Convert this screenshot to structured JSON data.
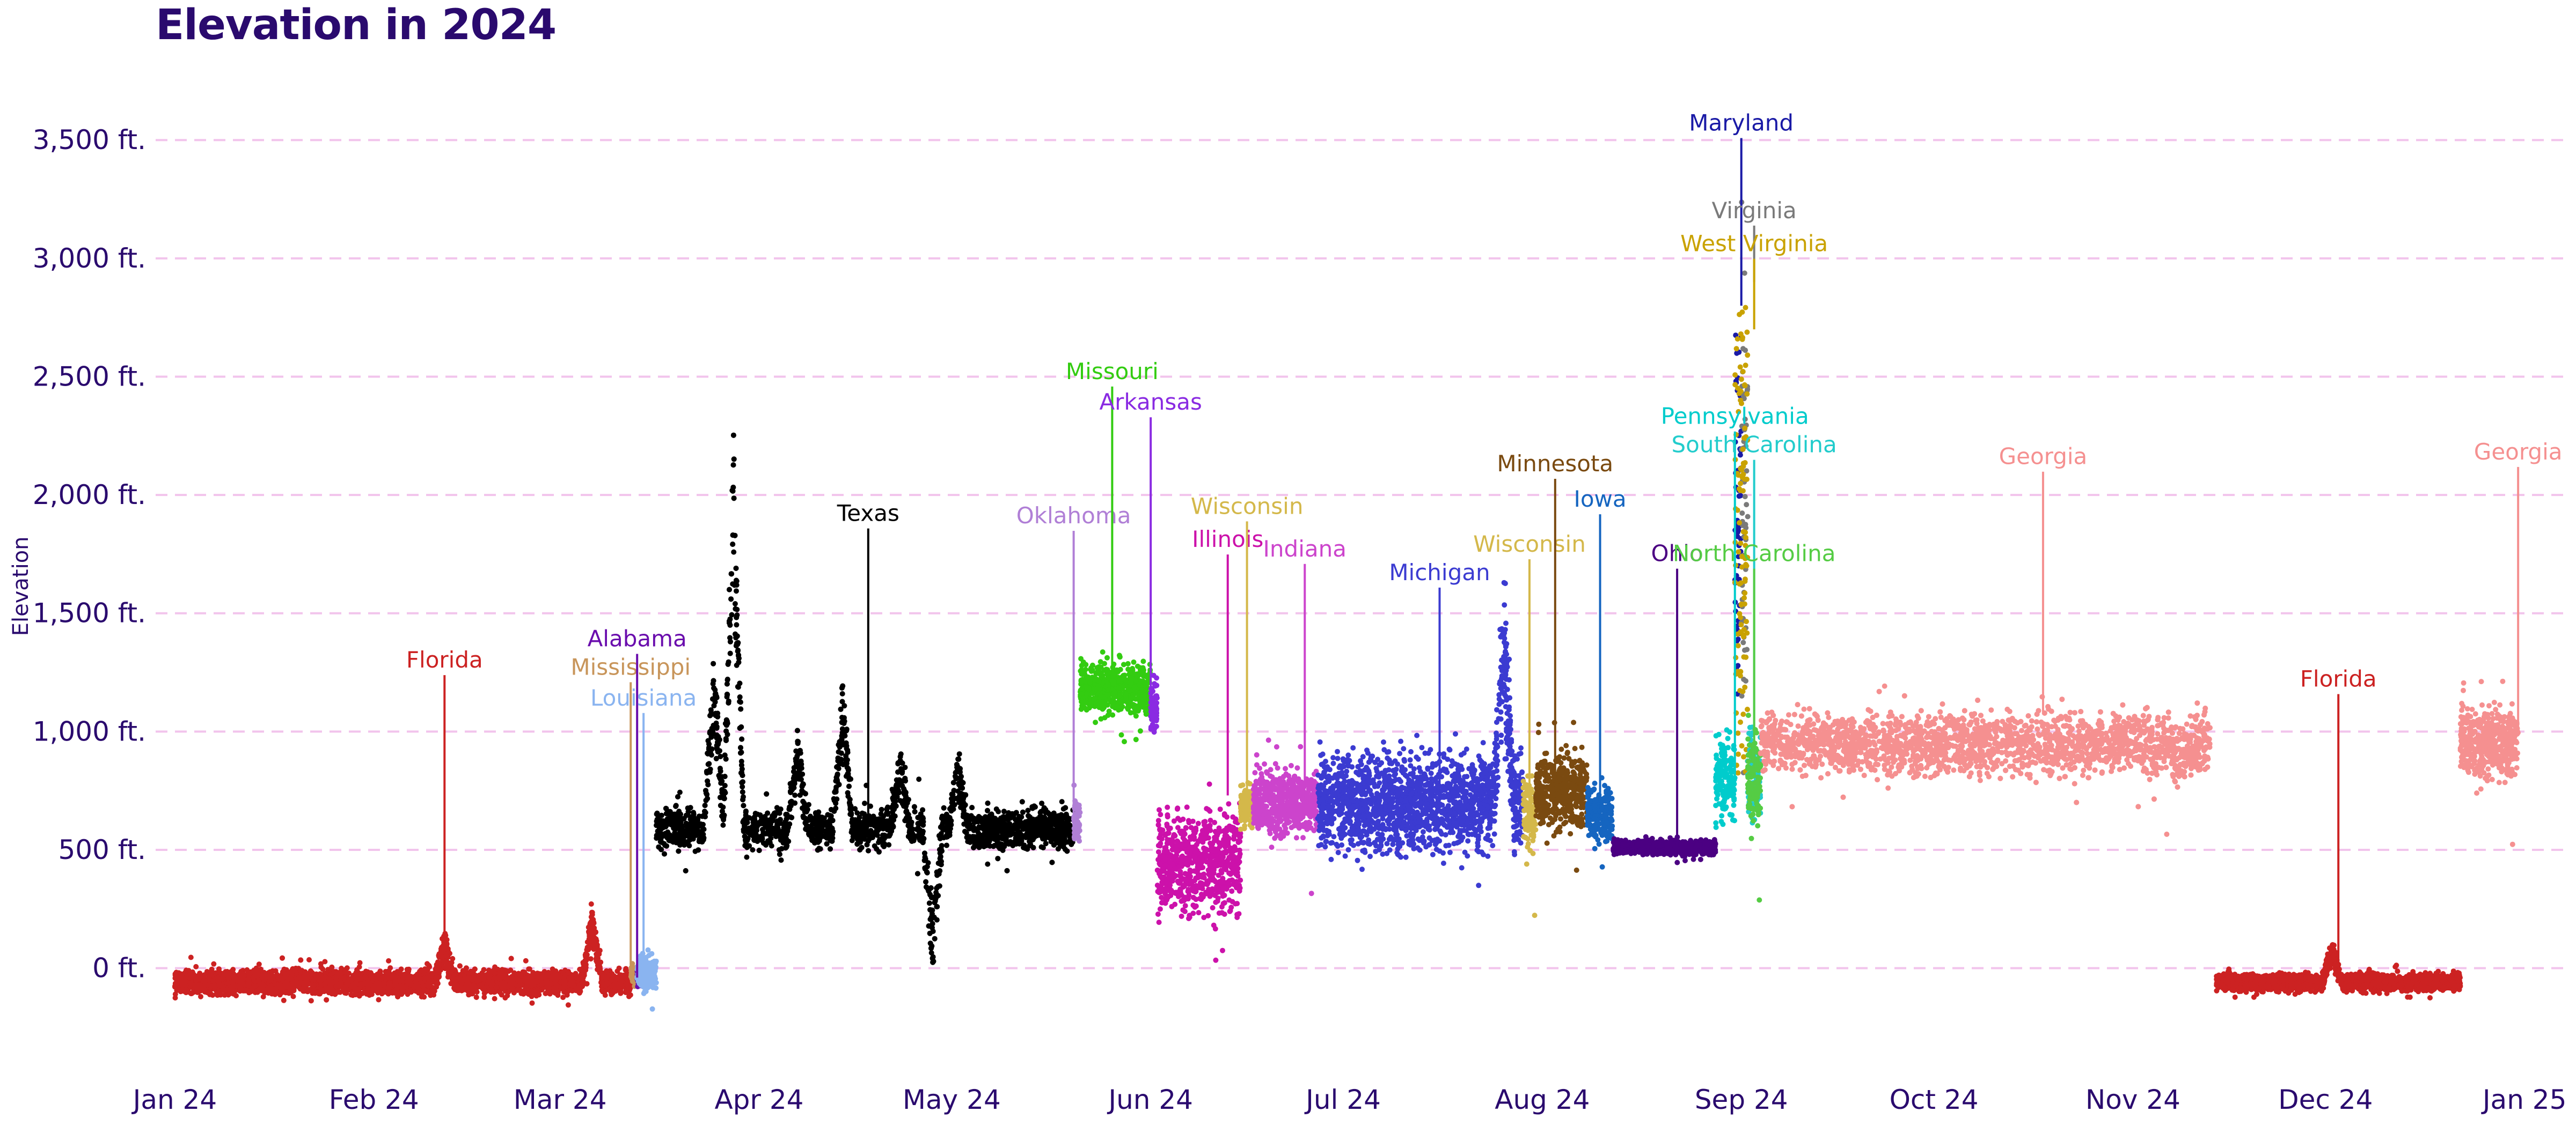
{
  "chart_data": {
    "type": "scatter",
    "title": "Elevation in 2024",
    "xlabel": "",
    "ylabel": "Elevation",
    "ylim": [
      -350,
      3650
    ],
    "xlim": [
      "2023-12-29",
      "2025-01-04"
    ],
    "grid": "horizontal dashed",
    "y_ticks": [
      {
        "value": 0,
        "label": "0 ft."
      },
      {
        "value": 500,
        "label": "500 ft."
      },
      {
        "value": 1000,
        "label": "1,000 ft."
      },
      {
        "value": 1500,
        "label": "1,500 ft."
      },
      {
        "value": 2000,
        "label": "2,000 ft."
      },
      {
        "value": 2500,
        "label": "2,500 ft."
      },
      {
        "value": 3000,
        "label": "3,000 ft."
      },
      {
        "value": 3500,
        "label": "3,500 ft."
      }
    ],
    "x_ticks": [
      {
        "date": "2024-01-01",
        "label": "Jan 24"
      },
      {
        "date": "2024-02-01",
        "label": "Feb 24"
      },
      {
        "date": "2024-03-01",
        "label": "Mar 24"
      },
      {
        "date": "2024-04-01",
        "label": "Apr 24"
      },
      {
        "date": "2024-05-01",
        "label": "May 24"
      },
      {
        "date": "2024-06-01",
        "label": "Jun 24"
      },
      {
        "date": "2024-07-01",
        "label": "Jul 24"
      },
      {
        "date": "2024-08-01",
        "label": "Aug 24"
      },
      {
        "date": "2024-09-01",
        "label": "Sep 24"
      },
      {
        "date": "2024-10-01",
        "label": "Oct 24"
      },
      {
        "date": "2024-11-01",
        "label": "Nov 24"
      },
      {
        "date": "2024-12-01",
        "label": "Dec 24"
      },
      {
        "date": "2025-01-01",
        "label": "Jan 25"
      }
    ],
    "series": [
      {
        "name": "Florida",
        "color": "#cc2222",
        "start": "2024-01-01",
        "end": "2024-03-12",
        "base": -60,
        "spread": 35,
        "bumps": [
          {
            "date": "2024-02-12",
            "value": 130
          },
          {
            "date": "2024-03-06",
            "value": 260
          }
        ]
      },
      {
        "name": "Mississippi",
        "color": "#c8955a",
        "start": "2024-03-12",
        "end": "2024-03-13",
        "base": -30,
        "spread": 30,
        "bumps": []
      },
      {
        "name": "Alabama",
        "color": "#6a0dad",
        "start": "2024-03-13",
        "end": "2024-03-14",
        "base": -40,
        "spread": 30,
        "bumps": []
      },
      {
        "name": "Louisiana",
        "color": "#8ab4f0",
        "start": "2024-03-13",
        "end": "2024-03-16",
        "base": -20,
        "spread": 50,
        "bumps": []
      },
      {
        "name": "Texas",
        "color": "#000000",
        "start": "2024-03-16",
        "end": "2024-05-20",
        "base": 590,
        "spread": 60,
        "bumps": [
          {
            "date": "2024-03-28",
            "value": 2300
          },
          {
            "date": "2024-03-25",
            "value": 1350
          },
          {
            "date": "2024-04-07",
            "value": 1000
          },
          {
            "date": "2024-04-14",
            "value": 1200
          },
          {
            "date": "2024-04-28",
            "value": -20
          },
          {
            "date": "2024-04-23",
            "value": 900
          },
          {
            "date": "2024-05-02",
            "value": 900
          }
        ]
      },
      {
        "name": "Oklahoma",
        "color": "#b07fd6",
        "start": "2024-05-20",
        "end": "2024-05-21",
        "base": 620,
        "spread": 60,
        "bumps": []
      },
      {
        "name": "Missouri",
        "color": "#33cc11",
        "start": "2024-05-21",
        "end": "2024-06-01",
        "base": 1180,
        "spread": 70,
        "bumps": []
      },
      {
        "name": "Arkansas",
        "color": "#8a2be2",
        "start": "2024-06-01",
        "end": "2024-06-02",
        "base": 1100,
        "spread": 80,
        "bumps": []
      },
      {
        "name": "Illinois",
        "color": "#cc11aa",
        "start": "2024-06-02",
        "end": "2024-06-15",
        "base": 450,
        "spread": 150,
        "bumps": []
      },
      {
        "name": "Wisconsin",
        "color": "#d4b84a",
        "start": "2024-06-15",
        "end": "2024-06-17",
        "base": 680,
        "spread": 60,
        "bumps": []
      },
      {
        "name": "Indiana",
        "color": "#cc44cc",
        "start": "2024-06-17",
        "end": "2024-06-27",
        "base": 700,
        "spread": 90,
        "bumps": []
      },
      {
        "name": "Michigan",
        "color": "#3b3bd1",
        "start": "2024-06-27",
        "end": "2024-07-29",
        "base": 700,
        "spread": 140,
        "bumps": [
          {
            "date": "2024-07-26",
            "value": 1550
          }
        ]
      },
      {
        "name": "Wisconsin",
        "color": "#d4b84a",
        "start": "2024-07-29",
        "end": "2024-07-31",
        "base": 650,
        "spread": 100,
        "bumps": []
      },
      {
        "name": "Minnesota",
        "color": "#7a4a10",
        "start": "2024-07-31",
        "end": "2024-08-08",
        "base": 750,
        "spread": 110,
        "bumps": []
      },
      {
        "name": "Iowa",
        "color": "#1565c0",
        "start": "2024-08-08",
        "end": "2024-08-12",
        "base": 650,
        "spread": 80,
        "bumps": []
      },
      {
        "name": "Ohio",
        "color": "#4b0082",
        "start": "2024-08-12",
        "end": "2024-08-28",
        "base": 510,
        "spread": 20,
        "bumps": []
      },
      {
        "name": "Pennsylvania",
        "color": "#00cccc",
        "start": "2024-08-28",
        "end": "2024-08-31",
        "base": 800,
        "spread": 120,
        "bumps": []
      },
      {
        "name": "Maryland",
        "color": "#1a1aa6",
        "start": "2024-08-31",
        "end": "2024-09-01",
        "base": 2000,
        "spread": 500,
        "bumps": []
      },
      {
        "name": "Virginia",
        "color": "#7a7a7a",
        "start": "2024-09-01",
        "end": "2024-09-02",
        "base": 2000,
        "spread": 700,
        "bumps": []
      },
      {
        "name": "West Virginia",
        "color": "#c9a200",
        "start": "2024-08-31",
        "end": "2024-09-02",
        "base": 1800,
        "spread": 900,
        "bumps": []
      },
      {
        "name": "South Carolina",
        "color": "#22cccc",
        "start": "2024-09-02",
        "end": "2024-09-04",
        "base": 800,
        "spread": 120,
        "bumps": []
      },
      {
        "name": "North Carolina",
        "color": "#55cc44",
        "start": "2024-09-02",
        "end": "2024-09-04",
        "base": 800,
        "spread": 120,
        "bumps": []
      },
      {
        "name": "Georgia",
        "color": "#f59090",
        "start": "2024-09-04",
        "end": "2024-11-13",
        "base": 950,
        "spread": 90,
        "bumps": [
          {
            "date": "2024-11-08",
            "value": 870
          }
        ]
      },
      {
        "name": "Florida",
        "color": "#cc2222",
        "start": "2024-11-14",
        "end": "2024-12-22",
        "base": -60,
        "spread": 25,
        "bumps": [
          {
            "date": "2024-12-02",
            "value": 100
          }
        ]
      },
      {
        "name": "Georgia",
        "color": "#f59090",
        "start": "2024-12-22",
        "end": "2024-12-31",
        "base": 950,
        "spread": 100,
        "bumps": []
      }
    ],
    "annotations": [
      {
        "label": "Florida",
        "color": "#cc2222",
        "date": "2024-02-12",
        "value": 60,
        "label_value": 1270
      },
      {
        "label": "Mississippi",
        "color": "#c8955a",
        "date": "2024-03-12",
        "value": -30,
        "label_value": 1240
      },
      {
        "label": "Alabama",
        "color": "#6a0dad",
        "date": "2024-03-13",
        "value": -40,
        "label_value": 1360
      },
      {
        "label": "Louisiana",
        "color": "#8ab4f0",
        "date": "2024-03-14",
        "value": -20,
        "label_value": 1110
      },
      {
        "label": "Texas",
        "color": "#000000",
        "date": "2024-04-18",
        "value": 620,
        "label_value": 1890
      },
      {
        "label": "Oklahoma",
        "color": "#b07fd6",
        "date": "2024-05-20",
        "value": 620,
        "label_value": 1880
      },
      {
        "label": "Missouri",
        "color": "#33cc11",
        "date": "2024-05-26",
        "value": 1280,
        "label_value": 2490
      },
      {
        "label": "Arkansas",
        "color": "#8a2be2",
        "date": "2024-06-01",
        "value": 1180,
        "label_value": 2360
      },
      {
        "label": "Illinois",
        "color": "#cc11aa",
        "date": "2024-06-13",
        "value": 730,
        "label_value": 1780
      },
      {
        "label": "Wisconsin",
        "color": "#d4b84a",
        "date": "2024-06-16",
        "value": 730,
        "label_value": 1920
      },
      {
        "label": "Indiana",
        "color": "#cc44cc",
        "date": "2024-06-25",
        "value": 760,
        "label_value": 1740
      },
      {
        "label": "Michigan",
        "color": "#3b3bd1",
        "date": "2024-07-16",
        "value": 780,
        "label_value": 1640
      },
      {
        "label": "Wisconsin",
        "color": "#d4b84a",
        "date": "2024-07-30",
        "value": 700,
        "label_value": 1760
      },
      {
        "label": "Minnesota",
        "color": "#7a4a10",
        "date": "2024-08-03",
        "value": 800,
        "label_value": 2100
      },
      {
        "label": "Iowa",
        "color": "#1565c0",
        "date": "2024-08-10",
        "value": 700,
        "label_value": 1950
      },
      {
        "label": "Ohio",
        "color": "#4b0082",
        "date": "2024-08-22",
        "value": 510,
        "label_value": 1720
      },
      {
        "label": "Pennsylvania",
        "color": "#00cccc",
        "date": "2024-08-31",
        "value": 800,
        "label_value": 2300
      },
      {
        "label": "Maryland",
        "color": "#1a1aa6",
        "date": "2024-09-01",
        "value": 2800,
        "label_value": 3540
      },
      {
        "label": "Virginia",
        "color": "#7a7a7a",
        "date": "2024-09-03",
        "value": 2900,
        "label_value": 3170
      },
      {
        "label": "West Virginia",
        "color": "#c9a200",
        "date": "2024-09-03",
        "value": 2700,
        "label_value": 3030
      },
      {
        "label": "South Carolina",
        "color": "#22cccc",
        "date": "2024-09-03",
        "value": 850,
        "label_value": 2180
      },
      {
        "label": "North Carolina",
        "color": "#55cc44",
        "date": "2024-09-03",
        "value": 850,
        "label_value": 1720
      },
      {
        "label": "Georgia",
        "color": "#f59090",
        "date": "2024-10-18",
        "value": 1080,
        "label_value": 2130
      },
      {
        "label": "Florida",
        "color": "#cc2222",
        "date": "2024-12-03",
        "value": 0,
        "label_value": 1190
      },
      {
        "label": "Georgia",
        "color": "#f59090",
        "date": "2024-12-31",
        "value": 1000,
        "label_value": 2150
      }
    ]
  }
}
